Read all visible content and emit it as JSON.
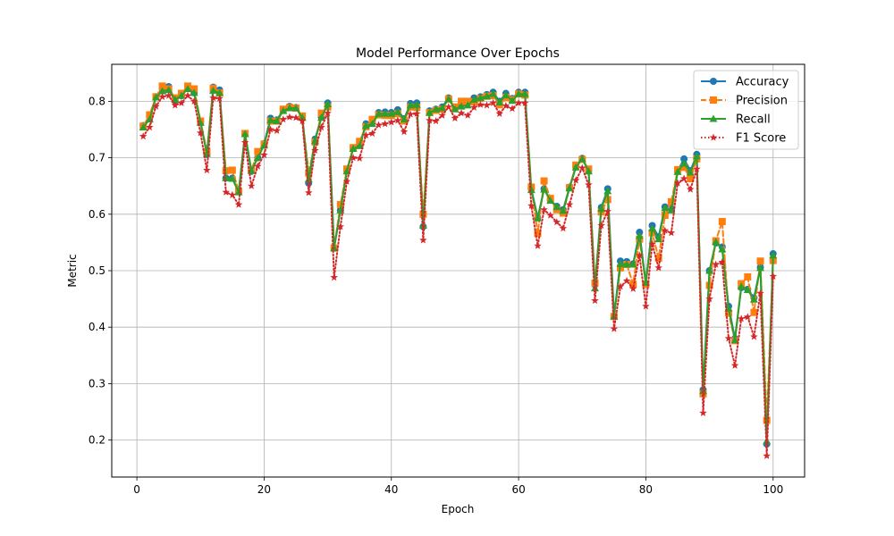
{
  "chart_data": {
    "type": "line",
    "title": "Model Performance Over Epochs",
    "xlabel": "Epoch",
    "ylabel": "Metric",
    "xlim": [
      -3.95,
      104.95
    ],
    "ylim": [
      0.1345,
      0.8655
    ],
    "xticks": [
      0,
      20,
      40,
      60,
      80,
      100
    ],
    "yticks": [
      0.2,
      0.3,
      0.4,
      0.5,
      0.6,
      0.7,
      0.8
    ],
    "xtick_labels": [
      "0",
      "20",
      "40",
      "60",
      "80",
      "100"
    ],
    "ytick_labels": [
      "0.2",
      "0.3",
      "0.4",
      "0.5",
      "0.6",
      "0.7",
      "0.8"
    ],
    "grid": true,
    "legend_position": "top-right",
    "x": [
      1,
      2,
      3,
      4,
      5,
      6,
      7,
      8,
      9,
      10,
      11,
      12,
      13,
      14,
      15,
      16,
      17,
      18,
      19,
      20,
      21,
      22,
      23,
      24,
      25,
      26,
      27,
      28,
      29,
      30,
      31,
      32,
      33,
      34,
      35,
      36,
      37,
      38,
      39,
      40,
      41,
      42,
      43,
      44,
      45,
      46,
      47,
      48,
      49,
      50,
      51,
      52,
      53,
      54,
      55,
      56,
      57,
      58,
      59,
      60,
      61,
      62,
      63,
      64,
      65,
      66,
      67,
      68,
      69,
      70,
      71,
      72,
      73,
      74,
      75,
      76,
      77,
      78,
      79,
      80,
      81,
      82,
      83,
      84,
      85,
      86,
      87,
      88,
      89,
      90,
      91,
      92,
      93,
      94,
      95,
      96,
      97,
      98,
      99,
      100
    ],
    "series": [
      {
        "name": "Accuracy",
        "color": "#1f77b4",
        "linestyle": "solid",
        "marker": "circle",
        "values": [
          0.757,
          0.773,
          0.808,
          0.822,
          0.826,
          0.801,
          0.81,
          0.825,
          0.815,
          0.765,
          0.706,
          0.825,
          0.82,
          0.664,
          0.664,
          0.64,
          0.742,
          0.676,
          0.7,
          0.725,
          0.77,
          0.767,
          0.785,
          0.791,
          0.789,
          0.773,
          0.655,
          0.733,
          0.772,
          0.797,
          0.54,
          0.607,
          0.678,
          0.717,
          0.723,
          0.76,
          0.763,
          0.78,
          0.781,
          0.78,
          0.785,
          0.769,
          0.796,
          0.797,
          0.578,
          0.783,
          0.786,
          0.79,
          0.806,
          0.788,
          0.795,
          0.796,
          0.806,
          0.808,
          0.812,
          0.816,
          0.8,
          0.814,
          0.805,
          0.816,
          0.816,
          0.645,
          0.594,
          0.645,
          0.625,
          0.614,
          0.608,
          0.648,
          0.685,
          0.699,
          0.677,
          0.475,
          0.612,
          0.645,
          0.42,
          0.517,
          0.516,
          0.512,
          0.568,
          0.477,
          0.58,
          0.56,
          0.613,
          0.61,
          0.677,
          0.698,
          0.677,
          0.706,
          0.289,
          0.5,
          0.549,
          0.542,
          0.437,
          0.38,
          0.47,
          0.467,
          0.452,
          0.506,
          0.193,
          0.53
        ]
      },
      {
        "name": "Precision",
        "color": "#ff7f0e",
        "linestyle": "dashed",
        "marker": "square",
        "values": [
          0.756,
          0.776,
          0.808,
          0.827,
          0.822,
          0.806,
          0.814,
          0.827,
          0.822,
          0.765,
          0.711,
          0.823,
          0.815,
          0.677,
          0.678,
          0.641,
          0.743,
          0.678,
          0.711,
          0.724,
          0.765,
          0.765,
          0.786,
          0.789,
          0.788,
          0.774,
          0.673,
          0.728,
          0.779,
          0.79,
          0.54,
          0.617,
          0.68,
          0.718,
          0.729,
          0.755,
          0.768,
          0.776,
          0.775,
          0.775,
          0.778,
          0.765,
          0.79,
          0.789,
          0.6,
          0.78,
          0.784,
          0.786,
          0.804,
          0.79,
          0.8,
          0.8,
          0.799,
          0.805,
          0.809,
          0.81,
          0.794,
          0.807,
          0.803,
          0.813,
          0.811,
          0.648,
          0.566,
          0.659,
          0.628,
          0.608,
          0.602,
          0.647,
          0.687,
          0.697,
          0.68,
          0.478,
          0.604,
          0.626,
          0.419,
          0.505,
          0.511,
          0.476,
          0.556,
          0.476,
          0.567,
          0.522,
          0.598,
          0.622,
          0.679,
          0.683,
          0.663,
          0.698,
          0.282,
          0.474,
          0.553,
          0.587,
          0.425,
          0.376,
          0.477,
          0.489,
          0.426,
          0.517,
          0.235,
          0.518
        ]
      },
      {
        "name": "Recall",
        "color": "#2ca02c",
        "linestyle": "solid",
        "marker": "triangle",
        "values": [
          0.754,
          0.768,
          0.807,
          0.818,
          0.82,
          0.803,
          0.81,
          0.822,
          0.815,
          0.762,
          0.707,
          0.819,
          0.815,
          0.664,
          0.663,
          0.639,
          0.742,
          0.677,
          0.7,
          0.722,
          0.767,
          0.765,
          0.783,
          0.788,
          0.788,
          0.771,
          0.662,
          0.73,
          0.771,
          0.795,
          0.54,
          0.607,
          0.676,
          0.716,
          0.721,
          0.757,
          0.76,
          0.778,
          0.778,
          0.778,
          0.781,
          0.768,
          0.793,
          0.794,
          0.58,
          0.78,
          0.786,
          0.788,
          0.804,
          0.786,
          0.791,
          0.793,
          0.803,
          0.806,
          0.809,
          0.813,
          0.798,
          0.811,
          0.801,
          0.813,
          0.813,
          0.643,
          0.593,
          0.644,
          0.624,
          0.613,
          0.606,
          0.646,
          0.683,
          0.698,
          0.676,
          0.469,
          0.61,
          0.641,
          0.419,
          0.512,
          0.511,
          0.511,
          0.562,
          0.479,
          0.575,
          0.556,
          0.611,
          0.607,
          0.675,
          0.69,
          0.674,
          0.703,
          0.287,
          0.5,
          0.551,
          0.538,
          0.433,
          0.377,
          0.472,
          0.466,
          0.449,
          0.505,
          0.198,
          0.527
        ]
      },
      {
        "name": "F1 Score",
        "color": "#d62728",
        "linestyle": "dotted",
        "marker": "star",
        "values": [
          0.738,
          0.754,
          0.791,
          0.808,
          0.81,
          0.793,
          0.797,
          0.81,
          0.8,
          0.744,
          0.678,
          0.806,
          0.805,
          0.639,
          0.634,
          0.617,
          0.727,
          0.65,
          0.685,
          0.705,
          0.75,
          0.748,
          0.768,
          0.772,
          0.771,
          0.765,
          0.638,
          0.713,
          0.754,
          0.779,
          0.488,
          0.578,
          0.658,
          0.7,
          0.699,
          0.74,
          0.743,
          0.758,
          0.76,
          0.763,
          0.766,
          0.746,
          0.777,
          0.778,
          0.554,
          0.766,
          0.765,
          0.775,
          0.79,
          0.77,
          0.779,
          0.775,
          0.789,
          0.794,
          0.793,
          0.797,
          0.778,
          0.792,
          0.787,
          0.797,
          0.797,
          0.615,
          0.544,
          0.608,
          0.598,
          0.586,
          0.575,
          0.617,
          0.66,
          0.682,
          0.652,
          0.447,
          0.58,
          0.605,
          0.397,
          0.472,
          0.482,
          0.468,
          0.527,
          0.437,
          0.547,
          0.505,
          0.571,
          0.567,
          0.655,
          0.663,
          0.644,
          0.68,
          0.248,
          0.45,
          0.511,
          0.515,
          0.38,
          0.332,
          0.415,
          0.418,
          0.383,
          0.46,
          0.172,
          0.49
        ]
      }
    ]
  }
}
